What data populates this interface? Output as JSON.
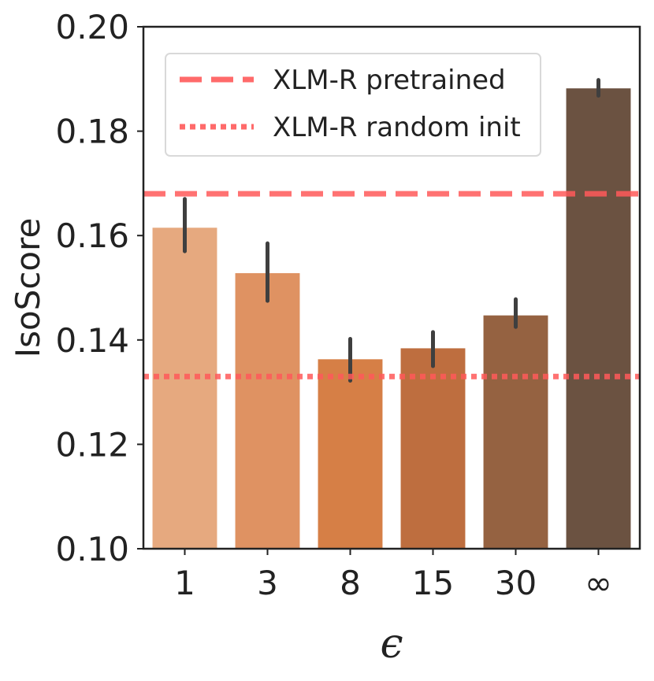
{
  "chart_data": {
    "type": "bar",
    "title": "",
    "xlabel": "ϵ",
    "ylabel": "IsoScore",
    "categories": [
      "1",
      "3",
      "8",
      "15",
      "30",
      "∞"
    ],
    "values": [
      0.1615,
      0.1528,
      0.1363,
      0.1384,
      0.1447,
      0.1882
    ],
    "errors": [
      [
        0.157,
        0.167
      ],
      [
        0.1475,
        0.1585
      ],
      [
        0.1322,
        0.1402
      ],
      [
        0.135,
        0.1415
      ],
      [
        0.1425,
        0.1478
      ],
      [
        0.1868,
        0.1898
      ]
    ],
    "bar_colors": [
      "#E6A97F",
      "#DF9262",
      "#D67F46",
      "#BE6E3F",
      "#956241",
      "#6B5241"
    ],
    "error_color": "#3F3F3F",
    "ylim": [
      0.1,
      0.2
    ],
    "yticks": [
      "0.10",
      "0.12",
      "0.14",
      "0.16",
      "0.18",
      "0.20"
    ],
    "ytick_values": [
      0.1,
      0.12,
      0.14,
      0.16,
      0.18,
      0.2
    ],
    "grid": false,
    "reference_lines": [
      {
        "label": "XLM-R pretrained",
        "value": 0.168,
        "style": "dashed",
        "color": "#FF5A5A"
      },
      {
        "label": "XLM-R random init",
        "value": 0.133,
        "style": "dotted",
        "color": "#FF5A5A"
      }
    ],
    "legend_position": "top-left"
  }
}
